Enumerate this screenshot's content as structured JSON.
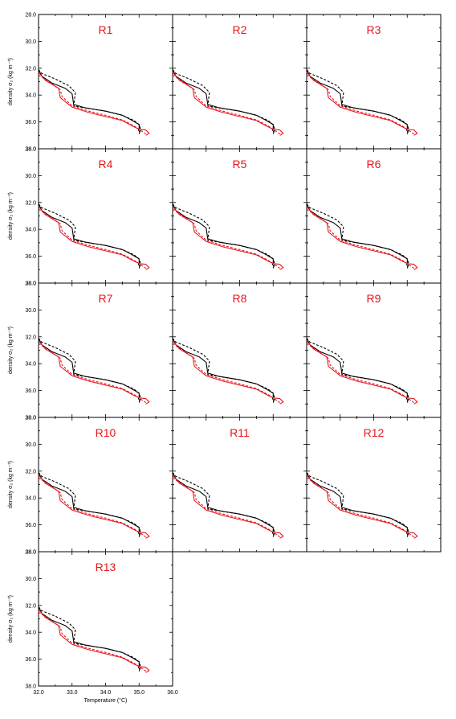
{
  "chart_data": {
    "type": "line",
    "xlabel": "Temperature (°C)",
    "ylabel": "density σ₂ (kg m⁻³)",
    "xlim": [
      32.0,
      36.0
    ],
    "ylim": [
      28.0,
      38.0
    ],
    "y_inverted": true,
    "xticks": [
      "32.0",
      "33.0",
      "34.0",
      "35.0",
      "36.0"
    ],
    "yticks": [
      "28.0",
      "30.0",
      "32.0",
      "34.0",
      "36.0",
      "38.0"
    ],
    "grid": false,
    "legend": "none",
    "colors": {
      "reference": "#000000",
      "run": "#e8141b"
    },
    "panels": [
      {
        "title": "R1"
      },
      {
        "title": "R2"
      },
      {
        "title": "R3"
      },
      {
        "title": "R4"
      },
      {
        "title": "R5"
      },
      {
        "title": "R6"
      },
      {
        "title": "R7"
      },
      {
        "title": "R8"
      },
      {
        "title": "R9"
      },
      {
        "title": "R10"
      },
      {
        "title": "R11"
      },
      {
        "title": "R12"
      },
      {
        "title": "R13"
      }
    ],
    "series": [
      {
        "style": "solid",
        "color": "#000000",
        "x": [
          32.0,
          32.1,
          32.4,
          32.8,
          33.0,
          33.05,
          33.4,
          34.0,
          34.5,
          34.8,
          35.0,
          35.0,
          34.98,
          35.02,
          35.0
        ],
        "y": [
          32.1,
          32.6,
          33.1,
          33.5,
          33.9,
          34.7,
          34.95,
          35.2,
          35.5,
          35.9,
          36.2,
          36.5,
          36.6,
          36.75,
          36.9
        ]
      },
      {
        "style": "dashed",
        "color": "#000000",
        "x": [
          32.0,
          32.1,
          32.5,
          32.9,
          33.1,
          33.05,
          33.5,
          34.0,
          34.5,
          34.85,
          35.0,
          35.05,
          35.0
        ],
        "y": [
          32.1,
          32.4,
          32.8,
          33.3,
          33.8,
          34.8,
          35.0,
          35.2,
          35.5,
          35.9,
          36.2,
          36.6,
          36.8
        ]
      },
      {
        "style": "solid",
        "color": "#e8141b",
        "x": [
          32.0,
          32.2,
          32.6,
          32.65,
          33.0,
          33.5,
          34.0,
          34.5,
          34.8,
          35.0,
          35.2,
          35.3,
          35.2
        ],
        "y": [
          32.3,
          32.9,
          33.5,
          34.2,
          34.9,
          35.3,
          35.6,
          35.9,
          36.3,
          36.55,
          36.6,
          36.85,
          37.0
        ]
      },
      {
        "style": "dashed",
        "color": "#e8141b",
        "x": [
          32.0,
          32.3,
          32.65,
          32.7,
          33.0,
          33.5,
          34.0,
          34.5,
          34.85,
          35.0,
          35.2
        ],
        "y": [
          32.5,
          33.0,
          33.6,
          34.1,
          34.8,
          35.2,
          35.5,
          35.85,
          36.3,
          36.55,
          36.9
        ]
      }
    ]
  }
}
